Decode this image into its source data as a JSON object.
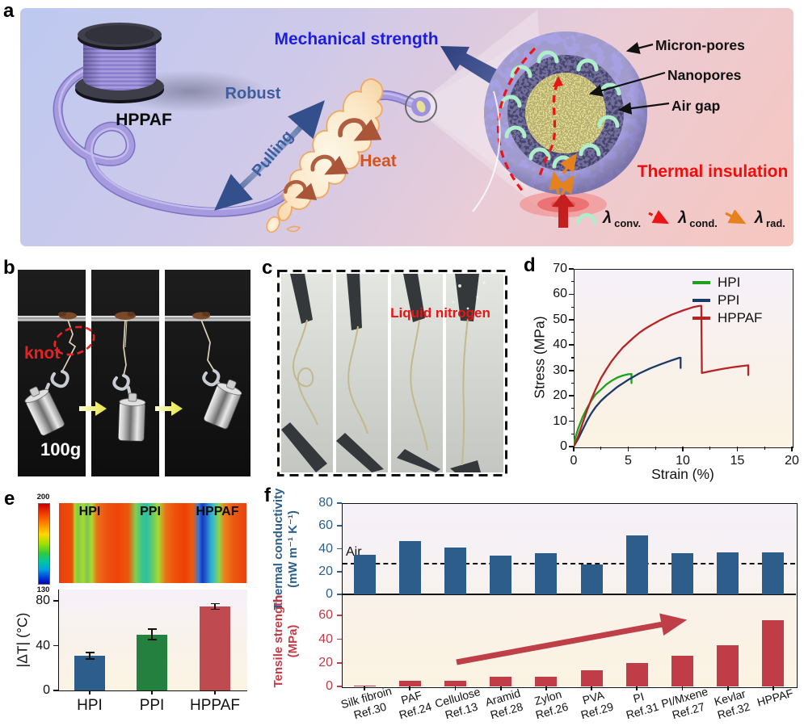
{
  "panels": {
    "a": {
      "label": "a",
      "spool_label": "HPPAF",
      "mechanical_strength": "Mechanical strength",
      "robust": "Robust",
      "pulling": "Pulling",
      "heat": "Heat",
      "micron_pores": "Micron-pores",
      "nanopores": "Nanopores",
      "air_gap": "Air gap",
      "thermal_insulation": "Thermal insulation",
      "legend": [
        {
          "icon": "convection-arc",
          "symbol": "λ",
          "sub": "conv."
        },
        {
          "icon": "conduction-dashed-arrow",
          "symbol": "λ",
          "sub": "cond."
        },
        {
          "icon": "radiation-arrow",
          "symbol": "λ",
          "sub": "rad."
        }
      ],
      "colors": {
        "mechanical": "#1d1ddd",
        "robust_pulling": "#3e5c9e",
        "heat": "#d4541e",
        "thermal": "#ef0e0e"
      }
    },
    "b": {
      "label": "b",
      "knot": "knot",
      "weight": "100g"
    },
    "c": {
      "label": "c",
      "caption": "Liquid nitrogen"
    },
    "d": {
      "label": "d"
    },
    "e": {
      "label": "e",
      "ir_labels": [
        "HPI",
        "PPI",
        "HPPAF"
      ],
      "colorbar_max": "200",
      "colorbar_min": "130"
    },
    "f": {
      "label": "f"
    }
  },
  "chart_data": [
    {
      "id": "stress_strain",
      "type": "line",
      "xlabel": "Strain (%)",
      "ylabel": "Stress (MPa)",
      "xlim": [
        0,
        20
      ],
      "ylim": [
        0,
        70
      ],
      "xticks": [
        0,
        5,
        10,
        15,
        20
      ],
      "yticks": [
        0,
        10,
        20,
        30,
        40,
        50,
        60,
        70
      ],
      "legend_position": "top-right",
      "grid": false,
      "series": [
        {
          "name": "HPI",
          "color": "#1fa01f",
          "points": [
            [
              0,
              1.5
            ],
            [
              0.4,
              7
            ],
            [
              0.8,
              11.5
            ],
            [
              1.2,
              15
            ],
            [
              1.6,
              18
            ],
            [
              2,
              20.5
            ],
            [
              2.5,
              22.5
            ],
            [
              3,
              24.5
            ],
            [
              3.5,
              26
            ],
            [
              4,
              27.2
            ],
            [
              4.5,
              28
            ],
            [
              5,
              28.5
            ],
            [
              5.3,
              28.6
            ],
            [
              5.3,
              25
            ]
          ]
        },
        {
          "name": "PPI",
          "color": "#1b3a66",
          "points": [
            [
              0,
              0
            ],
            [
              0.4,
              3
            ],
            [
              0.8,
              6.5
            ],
            [
              1.2,
              10
            ],
            [
              1.6,
              13
            ],
            [
              2,
              15.5
            ],
            [
              2.5,
              18
            ],
            [
              3,
              20
            ],
            [
              4,
              23.5
            ],
            [
              5,
              26.3
            ],
            [
              6,
              28.8
            ],
            [
              7,
              30.8
            ],
            [
              8,
              32.5
            ],
            [
              9,
              34
            ],
            [
              9.7,
              35
            ],
            [
              9.8,
              35
            ],
            [
              9.8,
              31
            ]
          ]
        },
        {
          "name": "HPPAF",
          "color": "#b62425",
          "points": [
            [
              0,
              0
            ],
            [
              0.4,
              4
            ],
            [
              0.8,
              9
            ],
            [
              1.2,
              14
            ],
            [
              1.6,
              18.5
            ],
            [
              2,
              22.5
            ],
            [
              2.5,
              27
            ],
            [
              3,
              30.5
            ],
            [
              3.5,
              33.8
            ],
            [
              4,
              36.5
            ],
            [
              4.5,
              39
            ],
            [
              5,
              41
            ],
            [
              5.5,
              43
            ],
            [
              6,
              44.8
            ],
            [
              6.5,
              46.3
            ],
            [
              7,
              47.6
            ],
            [
              7.5,
              48.8
            ],
            [
              8,
              50
            ],
            [
              8.5,
              51
            ],
            [
              9,
              52
            ],
            [
              9.5,
              52.8
            ],
            [
              10,
              53.6
            ],
            [
              10.5,
              54.3
            ],
            [
              11,
              55
            ],
            [
              11.5,
              55.4
            ],
            [
              11.7,
              55.5
            ],
            [
              11.75,
              29
            ],
            [
              12.5,
              29.7
            ],
            [
              13.5,
              30.5
            ],
            [
              14.5,
              31.2
            ],
            [
              15.5,
              31.8
            ],
            [
              16,
              32
            ],
            [
              16,
              28.2
            ]
          ]
        }
      ]
    },
    {
      "id": "delta_t",
      "type": "bar",
      "ylabel": "|ΔT| (°C)",
      "categories": [
        "HPI",
        "PPI",
        "HPPAF"
      ],
      "values": [
        31,
        50,
        75
      ],
      "errors": [
        3,
        4.5,
        2.5
      ],
      "colors": [
        "#2d5e8b",
        "#23803f",
        "#bf4a50"
      ],
      "ylim": [
        0,
        90
      ],
      "yticks": [
        0,
        40,
        80
      ],
      "grid": false
    },
    {
      "id": "material_comparison",
      "type": "bar",
      "categories": [
        {
          "name": "Silk fibroin",
          "ref": "Ref.30"
        },
        {
          "name": "PAF",
          "ref": "Ref.24"
        },
        {
          "name": "Cellulose",
          "ref": "Ref.13"
        },
        {
          "name": "Aramid",
          "ref": "Ref.28"
        },
        {
          "name": "Zylon",
          "ref": "Ref.26"
        },
        {
          "name": "PVA",
          "ref": "Ref.29"
        },
        {
          "name": "PI",
          "ref": "Ref.31"
        },
        {
          "name": "PI/Mxene",
          "ref": "Ref.27"
        },
        {
          "name": "Kevlar",
          "ref": "Ref.32"
        },
        {
          "name": "HPPAF",
          "ref": ""
        }
      ],
      "series": [
        {
          "name": "thermal_conductivity",
          "label_lines": [
            "Thermal conductivity",
            "(mW m⁻¹ K⁻¹)"
          ],
          "color": "#2d5e8b",
          "values": [
            35,
            47,
            41,
            34,
            36,
            26,
            52,
            36,
            37,
            37
          ],
          "ylim": [
            0,
            80
          ],
          "yticks": [
            0,
            20,
            40,
            60,
            80
          ],
          "reference_line": {
            "label": "Air",
            "value": 27
          }
        },
        {
          "name": "tensile_strength",
          "label_lines": [
            "Tensile strength",
            "(MPa)"
          ],
          "color": "#c03c46",
          "values": [
            1,
            5,
            5,
            8,
            8,
            14,
            20,
            26,
            35,
            56
          ],
          "ylim": [
            0,
            78
          ],
          "yticks": [
            0,
            20,
            40,
            60
          ],
          "trend_arrow": true
        }
      ],
      "grid": false
    }
  ]
}
